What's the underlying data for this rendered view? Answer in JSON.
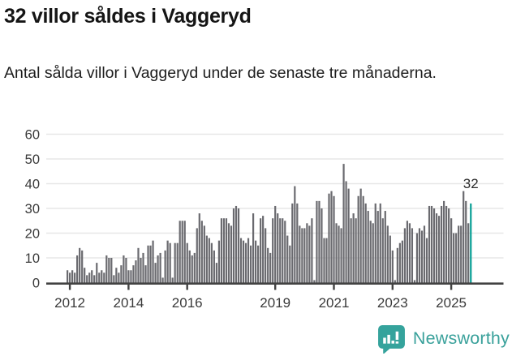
{
  "header": {
    "title": "32 villor såldes i Vaggeryd",
    "subtitle": "Antal sålda villor i Vaggeryd under de senaste tre månaderna."
  },
  "chart_data": {
    "type": "bar",
    "title": "32 villor såldes i Vaggeryd",
    "subtitle": "Antal sålda villor i Vaggeryd under de senaste tre månaderna.",
    "frequency": "monthly",
    "x_start_month": "2011-12",
    "x_end_month": "2025-09",
    "xlabel": "",
    "ylabel": "",
    "ylim": [
      0,
      62
    ],
    "grid": true,
    "legend": false,
    "yticks": [
      0,
      10,
      20,
      30,
      40,
      50,
      60
    ],
    "xtick_labels": [
      "2012",
      "2014",
      "2016",
      "2019",
      "2021",
      "2023",
      "2025"
    ],
    "bar_color": "#6a6a6f",
    "gridline_color": "#e7e7e7",
    "axis_color": "#424242",
    "values": [
      5,
      4,
      5,
      4,
      11,
      14,
      13,
      6,
      3,
      4,
      5,
      3,
      8,
      4,
      5,
      4,
      11,
      10,
      10,
      3,
      6,
      4,
      7,
      11,
      10,
      5,
      5,
      7,
      9,
      14,
      10,
      12,
      7,
      15,
      15,
      17,
      8,
      11,
      12,
      2,
      13,
      17,
      16,
      2,
      16,
      16,
      25,
      25,
      25,
      16,
      13,
      11,
      12,
      22,
      28,
      25,
      23,
      19,
      18,
      16,
      13,
      8,
      17,
      26,
      26,
      26,
      24,
      23,
      30,
      31,
      30,
      18,
      17,
      16,
      18,
      15,
      28,
      17,
      15,
      26,
      27,
      22,
      14,
      12,
      26,
      31,
      28,
      26,
      26,
      25,
      19,
      15,
      32,
      39,
      32,
      23,
      22,
      22,
      24,
      23,
      26,
      1,
      33,
      33,
      30,
      18,
      18,
      36,
      37,
      35,
      24,
      23,
      22,
      48,
      41,
      38,
      26,
      28,
      26,
      35,
      38,
      35,
      32,
      29,
      25,
      24,
      32,
      29,
      32,
      26,
      29,
      23,
      19,
      13,
      1,
      14,
      16,
      17,
      22,
      25,
      24,
      22,
      1,
      20,
      22,
      21,
      23,
      18,
      31,
      31,
      30,
      28,
      27,
      31,
      33,
      31,
      30,
      26,
      20,
      20,
      23,
      23,
      37,
      33,
      24,
      32
    ],
    "highlight": {
      "index": 165,
      "value": 32,
      "label": "32",
      "color": "#0aa096"
    }
  },
  "footer": {
    "brand": "Newsworthy",
    "brand_color": "#3aa19b",
    "logo_icon": "speech-bubble-bar-chart"
  }
}
